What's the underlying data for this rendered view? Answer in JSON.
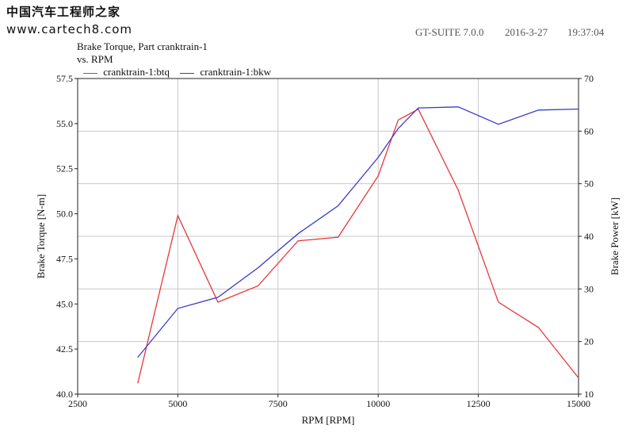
{
  "watermark": {
    "site_name": "中国汽车工程师之家",
    "url": "www.cartech8.com"
  },
  "header": {
    "software": "GT-SUITE 7.0.0",
    "date": "2016-3-27",
    "time": "19:37:04"
  },
  "chart_data": {
    "type": "line",
    "title_line1": "Brake Torque, Part cranktrain-1",
    "title_line2": "vs. RPM",
    "xlabel": "RPM [RPM]",
    "ylabel_left": "Brake Torque [N-m]",
    "ylabel_right": "Brake Power [kW]",
    "xlim": [
      2500,
      15000
    ],
    "ylim_left": [
      40,
      57.5
    ],
    "ylim_right": [
      10,
      70
    ],
    "xticks": [
      2500,
      5000,
      7500,
      10000,
      12500,
      15000
    ],
    "xtick_labels": [
      "2500",
      "5000",
      "7500",
      "10000",
      "12500",
      "15000"
    ],
    "yticks_left": [
      40,
      42.5,
      45,
      47.5,
      50,
      52.5,
      55,
      57.5
    ],
    "ytick_labels_left": [
      "40.0",
      "42.5",
      "45.0",
      "47.5",
      "50.0",
      "52.5",
      "55.0",
      "57.5"
    ],
    "yticks_right": [
      10,
      20,
      30,
      40,
      50,
      60,
      70
    ],
    "ytick_labels_right": [
      "10",
      "20",
      "30",
      "40",
      "50",
      "60",
      "70"
    ],
    "grid": true,
    "legend_position": "top-left",
    "series": [
      {
        "name": "cranktrain-1:btq",
        "axis": "left",
        "color": "#e8363a",
        "x": [
          4000,
          5000,
          6000,
          7000,
          8000,
          9000,
          10000,
          10500,
          11000,
          12000,
          13000,
          14000,
          15000
        ],
        "y": [
          40.6,
          49.9,
          45.1,
          46.0,
          48.5,
          48.7,
          52.1,
          55.2,
          55.8,
          51.3,
          45.1,
          43.7,
          40.9
        ]
      },
      {
        "name": "cranktrain-1:bkw",
        "axis": "right",
        "color": "#3a3acd",
        "x": [
          4000,
          5000,
          6000,
          7000,
          8000,
          9000,
          10000,
          10500,
          11000,
          12000,
          13000,
          14000,
          15000
        ],
        "y": [
          17.0,
          26.3,
          28.4,
          34.0,
          40.5,
          45.8,
          55.0,
          60.5,
          64.4,
          64.6,
          61.3,
          64.0,
          64.2
        ]
      }
    ]
  }
}
